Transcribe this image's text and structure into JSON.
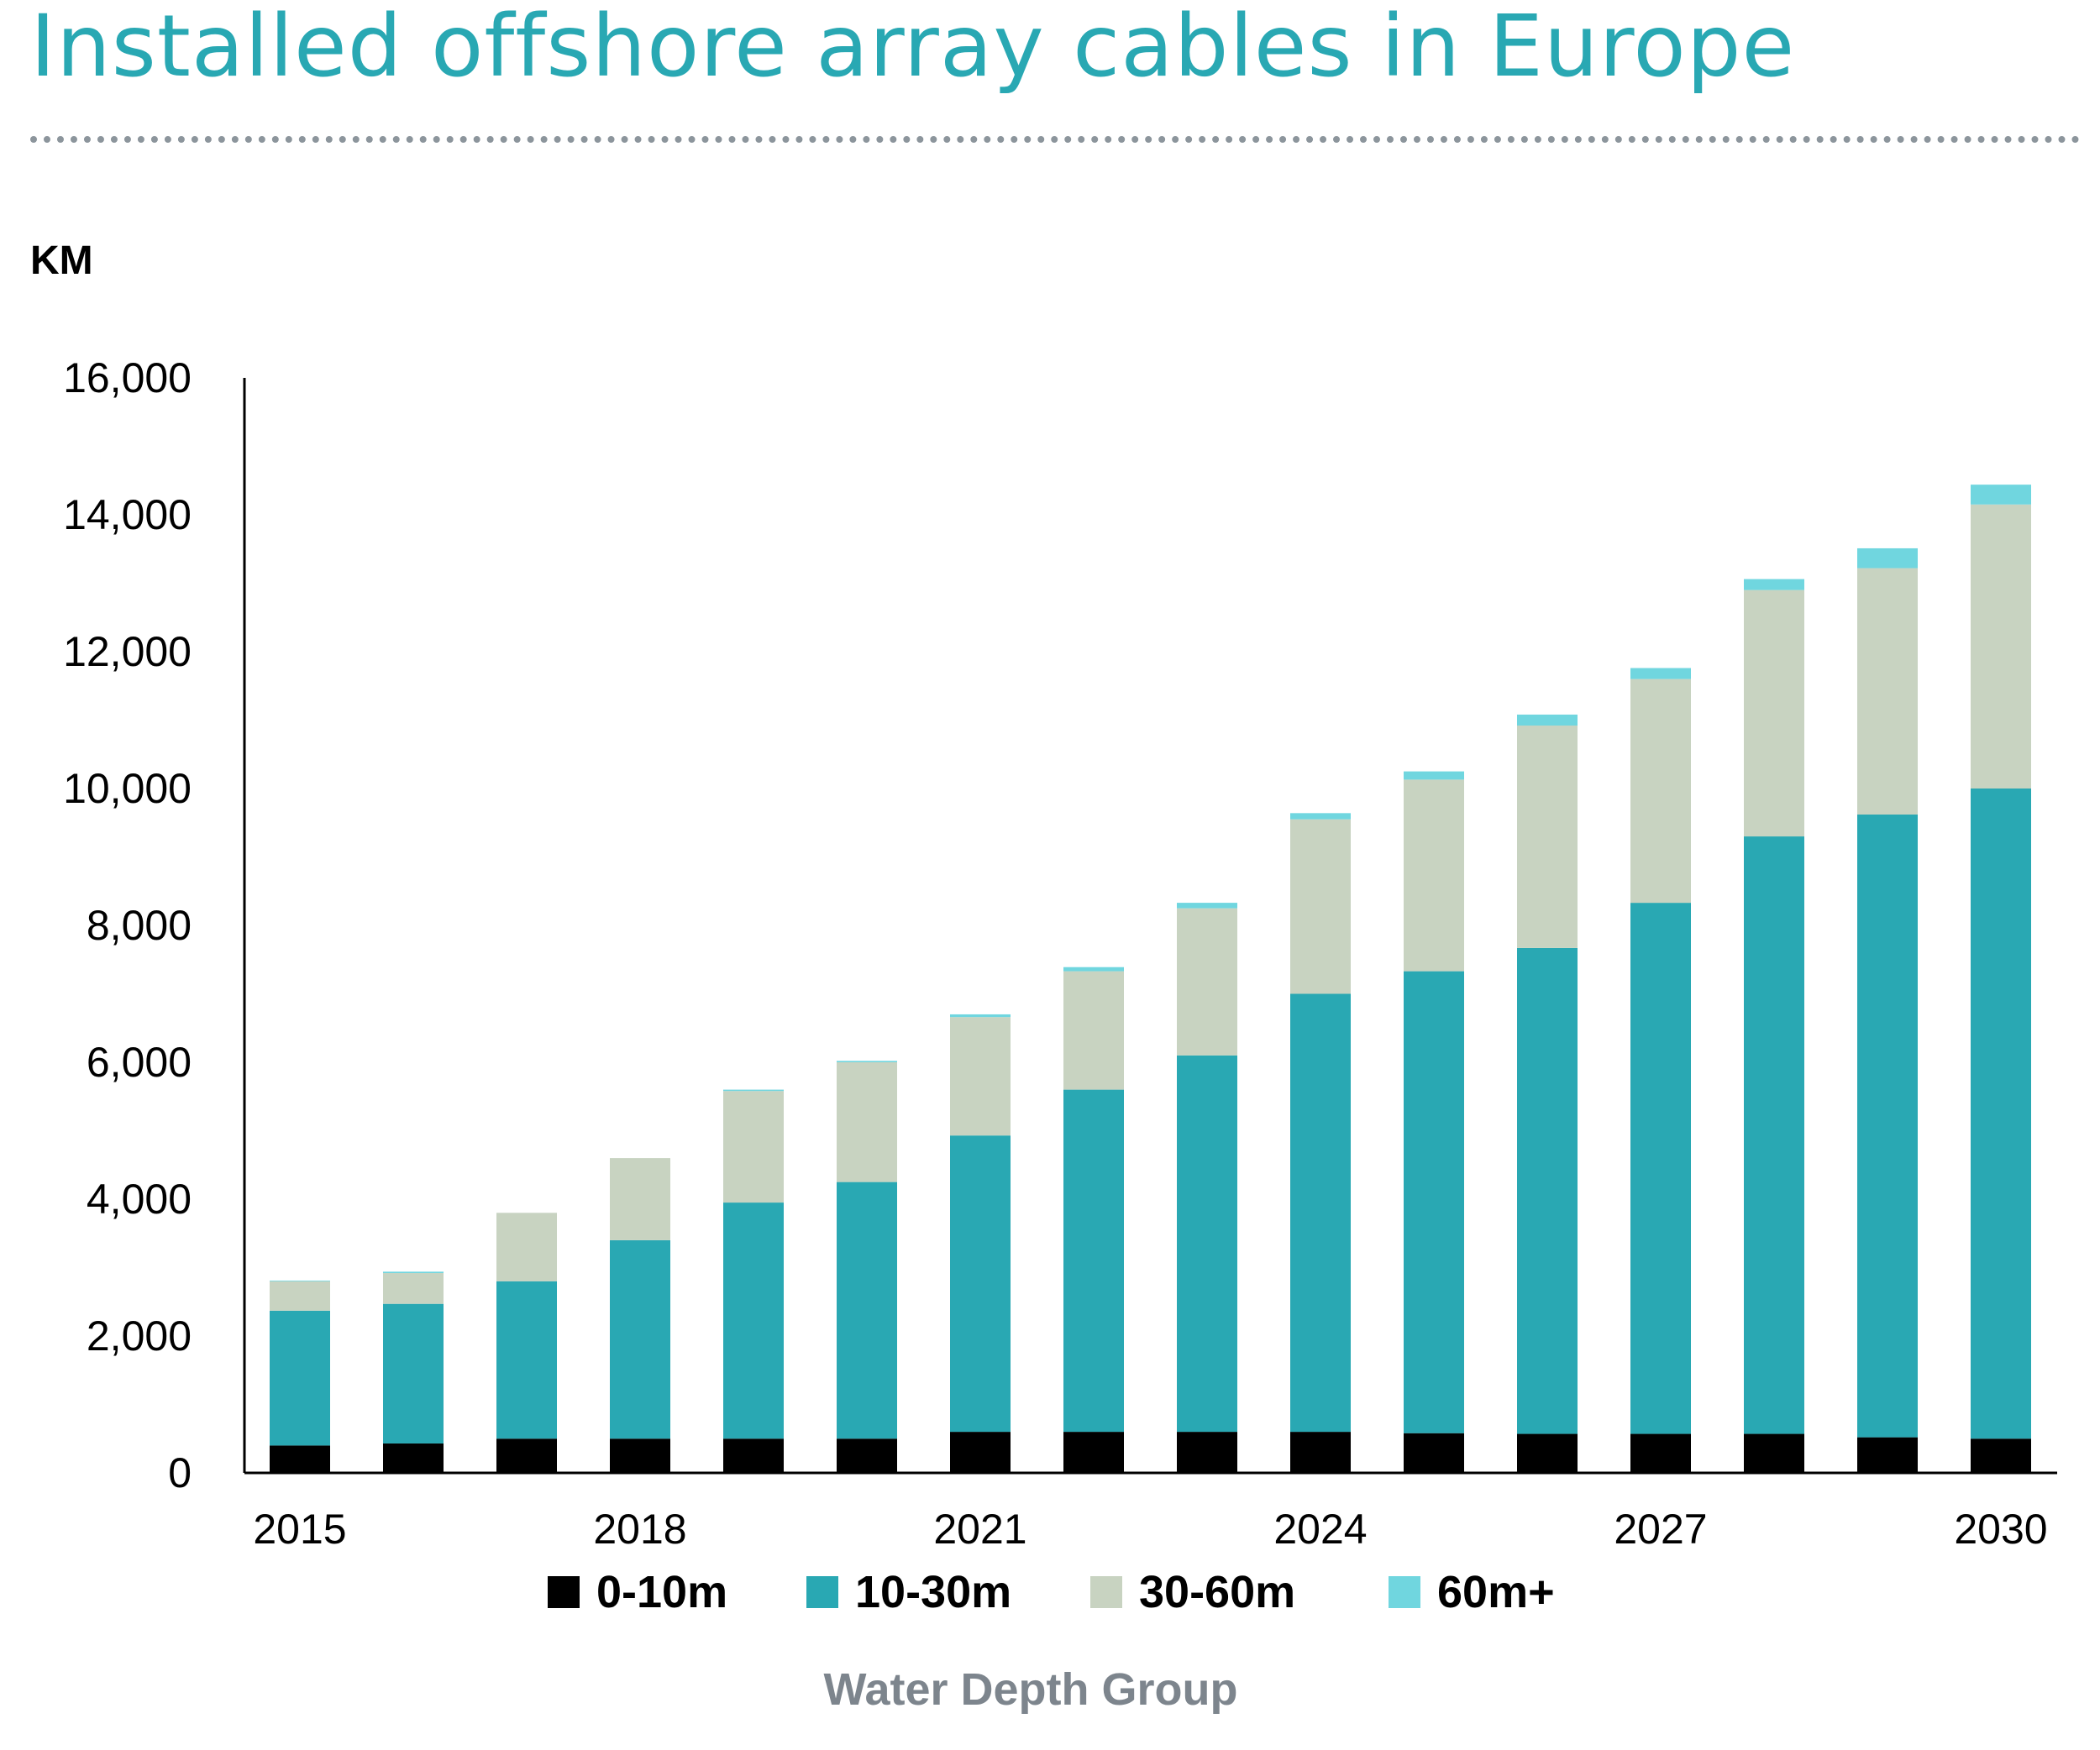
{
  "title": "Installed offshore array cables in Europe",
  "colors": {
    "title": "#29a8b3",
    "divider": "#8c959c",
    "axis": "#000000",
    "xlabel": "#7d858d"
  },
  "chart_data": {
    "type": "bar",
    "stacked": true,
    "title": "Installed offshore array cables in Europe",
    "ylabel": "KM",
    "xlabel": "Water Depth Group",
    "ylim": [
      0,
      16000
    ],
    "yticks": [
      0,
      2000,
      4000,
      6000,
      8000,
      10000,
      12000,
      14000,
      16000
    ],
    "ytick_labels": [
      "0",
      "2,000",
      "4,000",
      "6,000",
      "8,000",
      "10,000",
      "12,000",
      "14,000",
      "16,000"
    ],
    "categories": [
      "2015",
      "2016",
      "2017",
      "2018",
      "2019",
      "2020",
      "2021",
      "2022",
      "2023",
      "2024",
      "2025",
      "2026",
      "2027",
      "2028",
      "2029",
      "2030"
    ],
    "xtick_labels": [
      "2015",
      "2018",
      "2021",
      "2024",
      "2027",
      "2030"
    ],
    "legend_position": "bottom",
    "grid": false,
    "series": [
      {
        "name": "0-10m",
        "color": "#000000",
        "values": [
          400,
          430,
          500,
          500,
          500,
          500,
          600,
          600,
          600,
          600,
          580,
          570,
          570,
          570,
          520,
          500
        ]
      },
      {
        "name": "10-30m",
        "color": "#29a8b3",
        "values": [
          1970,
          2040,
          2300,
          2900,
          3450,
          3750,
          4330,
          5000,
          5500,
          6400,
          6750,
          7100,
          7760,
          8730,
          9100,
          9500
        ]
      },
      {
        "name": "30-60m",
        "color": "#c8d3c1",
        "values": [
          430,
          450,
          1000,
          1200,
          1630,
          1750,
          1730,
          1730,
          2150,
          2550,
          2800,
          3250,
          3270,
          3600,
          3600,
          4150
        ]
      },
      {
        "name": "60m+",
        "color": "#70d6df",
        "values": [
          10,
          20,
          0,
          0,
          20,
          20,
          40,
          60,
          80,
          90,
          120,
          160,
          160,
          160,
          290,
          290
        ]
      }
    ]
  }
}
